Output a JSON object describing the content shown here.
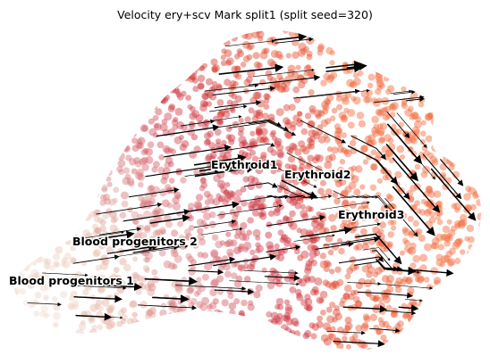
{
  "title": "Velocity ery+scv Mark split1 (split seed=320)",
  "chart_data": {
    "type": "scatter",
    "title": "Velocity ery+scv Mark split1 (split seed=320)",
    "xlabel": "",
    "ylabel": "",
    "axes_visible": false,
    "grid": false,
    "overlay": "velocity streamlines with arrowheads (black)",
    "colormap": [
      "#f2e4da",
      "#e8c2b0",
      "#d8737a",
      "#cc2c3a",
      "#e2462a",
      "#f46a3c"
    ],
    "clusters": [
      {
        "name": "Blood progenitors 1",
        "color": "#ecd4c4"
      },
      {
        "name": "Blood progenitors 2",
        "color": "#dcb0a4"
      },
      {
        "name": "Erythroid1",
        "color": "#cf3a46"
      },
      {
        "name": "Erythroid2",
        "color": "#d74a3a"
      },
      {
        "name": "Erythroid3",
        "color": "#f0603a"
      }
    ]
  }
}
